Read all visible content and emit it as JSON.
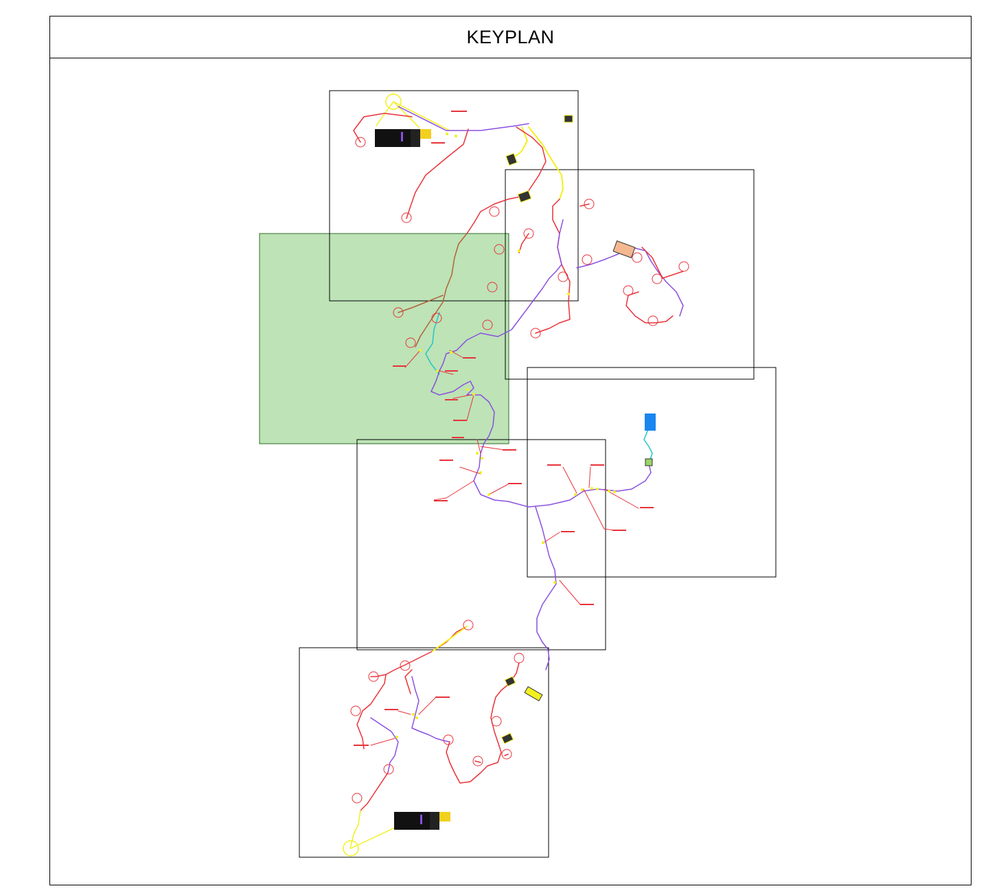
{
  "title": "KEYPLAN",
  "colors": {
    "frame": "#000000",
    "highlight_fill": "#bde3b6",
    "highlight_stroke": "#2f6b2a",
    "route_red": "#e8323a",
    "route_purple": "#8a4fe0",
    "route_yellow": "#f2f020",
    "route_brown": "#b0623a",
    "route_cyan": "#22c6c6",
    "marker_blue": "#1a86f0"
  },
  "sheets": [
    {
      "id": "sheet-1",
      "highlighted": false
    },
    {
      "id": "sheet-2",
      "highlighted": false
    },
    {
      "id": "sheet-3",
      "highlighted": true
    },
    {
      "id": "sheet-4",
      "highlighted": false
    },
    {
      "id": "sheet-5",
      "highlighted": false
    },
    {
      "id": "sheet-6",
      "highlighted": false
    }
  ]
}
